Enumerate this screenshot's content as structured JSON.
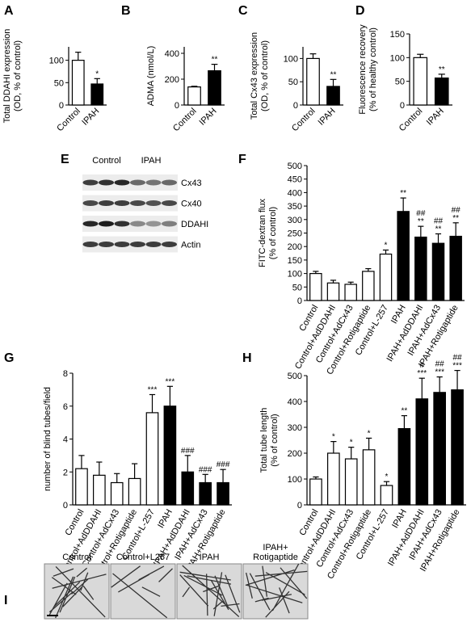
{
  "chart_data": [
    {
      "type": "bar",
      "panel": "A",
      "ylabel": [
        "Total DDAHI expression",
        "(OD, % of control)"
      ],
      "categories": [
        "Control",
        "IPAH"
      ],
      "values": [
        100,
        47
      ],
      "errors": [
        18,
        12
      ],
      "colors": [
        "#ffffff",
        "#000000"
      ],
      "annotations": [
        [],
        [
          "*"
        ]
      ],
      "ylim": [
        0,
        130
      ],
      "yticks": [
        0,
        50,
        100
      ]
    },
    {
      "type": "bar",
      "panel": "B",
      "ylabel": [
        "ADMA (nmol/L)"
      ],
      "categories": [
        "Control",
        "IPAH"
      ],
      "values": [
        140,
        265
      ],
      "errors": [
        5,
        50
      ],
      "colors": [
        "#ffffff",
        "#000000"
      ],
      "annotations": [
        [],
        [
          "**"
        ]
      ],
      "ylim": [
        0,
        450
      ],
      "yticks": [
        0,
        200,
        400
      ]
    },
    {
      "type": "bar",
      "panel": "C",
      "ylabel": [
        "Total Cx43 expression",
        "(OD, % of control)"
      ],
      "categories": [
        "Control",
        "IPAH"
      ],
      "values": [
        100,
        40
      ],
      "errors": [
        10,
        15
      ],
      "colors": [
        "#ffffff",
        "#000000"
      ],
      "annotations": [
        [],
        [
          "**"
        ]
      ],
      "ylim": [
        0,
        125
      ],
      "yticks": [
        0,
        50,
        100
      ]
    },
    {
      "type": "bar",
      "panel": "D",
      "ylabel": [
        "Fluorescence recovery",
        "(% of healthy control)"
      ],
      "categories": [
        "Control",
        "IPAH"
      ],
      "values": [
        100,
        57
      ],
      "errors": [
        7,
        8
      ],
      "colors": [
        "#ffffff",
        "#000000"
      ],
      "annotations": [
        [],
        [
          "**"
        ]
      ],
      "ylim": [
        0,
        150
      ],
      "yticks": [
        0,
        50,
        100,
        150
      ]
    },
    {
      "type": "bar",
      "panel": "F",
      "ylabel": [
        "FITC-dextran flux",
        "(% of control)"
      ],
      "categories": [
        "Control",
        "Control+AdDDAHI",
        "Control+AdCx43",
        "Control+Rotigaptide",
        "Control+L-257",
        "IPAH",
        "IPAH+AdDDAHI",
        "IPAH+AdCx43",
        "IPAH+Rotigaptide"
      ],
      "values": [
        100,
        65,
        60,
        108,
        172,
        330,
        235,
        212,
        238
      ],
      "errors": [
        8,
        10,
        8,
        10,
        15,
        50,
        40,
        35,
        50
      ],
      "colors": [
        "#ffffff",
        "#ffffff",
        "#ffffff",
        "#ffffff",
        "#ffffff",
        "#000000",
        "#000000",
        "#000000",
        "#000000"
      ],
      "annotations": [
        [],
        [],
        [],
        [],
        [
          "*"
        ],
        [
          "**"
        ],
        [
          "##",
          "**"
        ],
        [
          "##",
          "**"
        ],
        [
          "##",
          "**"
        ]
      ],
      "ylim": [
        0,
        500
      ],
      "yticks": [
        0,
        50,
        100,
        150,
        200,
        250,
        300,
        350,
        400,
        450,
        500
      ]
    },
    {
      "type": "bar",
      "panel": "G",
      "ylabel": [
        "number of blind tubes/field"
      ],
      "categories": [
        "Control",
        "Control+AdDDAHI",
        "Control+AdCx43",
        "Control+Rotigaptide",
        "Control+L-257",
        "IPAH",
        "IPAH+AdDDAHI",
        "IPAH+AdCx43",
        "IPAH+Rotigaptide"
      ],
      "values": [
        2.2,
        1.8,
        1.35,
        1.6,
        5.6,
        6.0,
        2.0,
        1.35,
        1.35
      ],
      "errors": [
        0.8,
        0.8,
        0.55,
        0.9,
        1.1,
        1.2,
        1.0,
        0.5,
        0.8
      ],
      "colors": [
        "#ffffff",
        "#ffffff",
        "#ffffff",
        "#ffffff",
        "#ffffff",
        "#000000",
        "#000000",
        "#000000",
        "#000000"
      ],
      "annotations": [
        [],
        [],
        [],
        [],
        [
          "***"
        ],
        [
          "***"
        ],
        [
          "###"
        ],
        [
          "###"
        ],
        [
          "###"
        ]
      ],
      "ylim": [
        0,
        8
      ],
      "yticks": [
        0,
        2,
        4,
        6,
        8
      ]
    },
    {
      "type": "bar",
      "panel": "H",
      "ylabel": [
        "Total tube length",
        "(% of control)"
      ],
      "categories": [
        "Control",
        "Control+AdDDAHI",
        "Control+AdCx43",
        "Control+Rotigaptide",
        "Control+L-257",
        "IPAH",
        "IPAH+AdDDAHI",
        "IPAH+AdCx43",
        "IPAH+Rotigaptide"
      ],
      "values": [
        100,
        200,
        178,
        213,
        75,
        295,
        410,
        435,
        445
      ],
      "errors": [
        8,
        45,
        45,
        45,
        15,
        50,
        80,
        60,
        75
      ],
      "colors": [
        "#ffffff",
        "#ffffff",
        "#ffffff",
        "#ffffff",
        "#ffffff",
        "#000000",
        "#000000",
        "#000000",
        "#000000"
      ],
      "annotations": [
        [],
        [
          "*"
        ],
        [
          "*"
        ],
        [
          "*"
        ],
        [
          "*"
        ],
        [
          "**"
        ],
        [
          "#",
          "***"
        ],
        [
          "##",
          "***"
        ],
        [
          "##",
          "***"
        ]
      ],
      "ylim": [
        0,
        500
      ],
      "yticks": [
        0,
        100,
        200,
        300,
        400,
        500
      ]
    }
  ],
  "blot": {
    "panel": "E",
    "groups": [
      "Control",
      "IPAH"
    ],
    "bands": [
      "Cx43",
      "Cx40",
      "DDAHI",
      "Actin"
    ]
  },
  "micrographs": {
    "panel": "I",
    "labels": [
      [
        "Control"
      ],
      [
        "Control+L257"
      ],
      [
        "IPAH"
      ],
      [
        "IPAH+",
        "Rotigaptide"
      ]
    ]
  }
}
